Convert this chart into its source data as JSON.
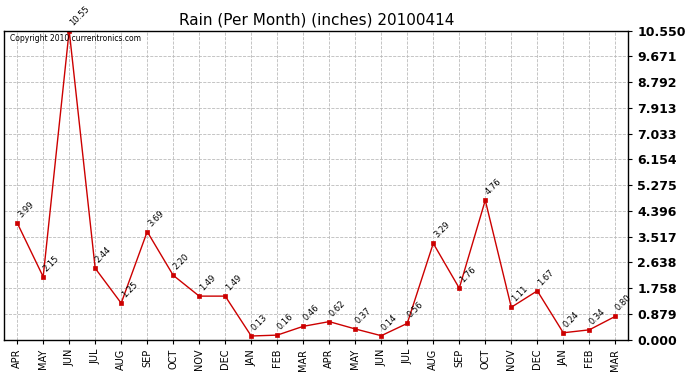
{
  "title": "Rain (Per Month) (inches) 20100414",
  "copyright": "Copyright 2010 currentronics.com",
  "categories": [
    "APR",
    "MAY",
    "JUN",
    "JUL",
    "AUG",
    "SEP",
    "OCT",
    "NOV",
    "DEC",
    "JAN",
    "FEB",
    "MAR",
    "APR",
    "MAY",
    "JUN",
    "JUL",
    "AUG",
    "SEP",
    "OCT",
    "NOV",
    "DEC",
    "JAN",
    "FEB",
    "MAR"
  ],
  "values": [
    3.99,
    2.15,
    10.55,
    2.44,
    1.25,
    3.69,
    2.2,
    1.49,
    1.49,
    0.13,
    0.16,
    0.46,
    0.62,
    0.37,
    0.14,
    0.56,
    3.29,
    1.76,
    4.76,
    1.11,
    1.67,
    0.24,
    0.34,
    0.8
  ],
  "line_color": "#cc0000",
  "marker_color": "#cc0000",
  "background_color": "#ffffff",
  "grid_color": "#bbbbbb",
  "title_fontsize": 11,
  "label_fontsize": 7,
  "ytick_fontsize": 9,
  "yticks": [
    0.0,
    0.879,
    1.758,
    2.638,
    3.517,
    4.396,
    5.275,
    6.154,
    7.033,
    7.913,
    8.792,
    9.671,
    10.55
  ],
  "ylim": [
    0.0,
    10.55
  ],
  "annotation_fontsize": 6.0,
  "figwidth": 6.9,
  "figheight": 3.75,
  "dpi": 100
}
